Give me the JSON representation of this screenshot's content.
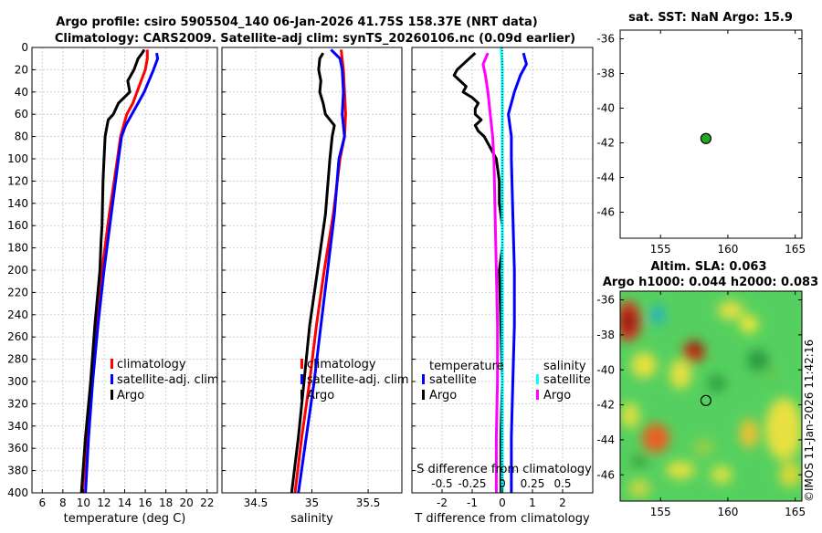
{
  "header": {
    "title_line1": "Argo profile: csiro 5905504_140 06-Jan-2026 41.75S 158.37E (NRT data)",
    "title_line2": "Climatology: CARS2009. Satellite-adj clim: synTS_20260106.nc (0.09d earlier)"
  },
  "colors": {
    "argo": "#000000",
    "climatology": "#ff0000",
    "satellite": "#0000ff",
    "t_satellite": "#0000ff",
    "s_satellite": "#00ffff",
    "s_argo": "#ff00ff"
  },
  "chart_data": [
    {
      "id": "temperature",
      "type": "line",
      "xlabel": "temperature (deg C)",
      "ylabel": "",
      "xlim": [
        5,
        23
      ],
      "ylim": [
        400,
        0
      ],
      "xticks": [
        6,
        8,
        10,
        12,
        14,
        16,
        18,
        20,
        22
      ],
      "yticks": [
        0,
        20,
        40,
        60,
        80,
        100,
        120,
        140,
        160,
        180,
        200,
        220,
        240,
        260,
        280,
        300,
        320,
        340,
        360,
        380,
        400
      ],
      "legend": [
        "climatology",
        "satellite-adj. clim",
        "Argo"
      ],
      "series": [
        {
          "name": "climatology",
          "color": "#ff0000",
          "depth": [
            2,
            10,
            20,
            40,
            50,
            60,
            70,
            80,
            100,
            150,
            200,
            250,
            300,
            350,
            400
          ],
          "values": [
            16.2,
            16.2,
            16.0,
            15.2,
            14.8,
            14.2,
            13.9,
            13.6,
            13.3,
            12.5,
            11.8,
            11.2,
            10.7,
            10.3,
            9.9
          ]
        },
        {
          "name": "satellite-adj. clim",
          "color": "#0000ff",
          "depth": [
            5,
            10,
            20,
            40,
            50,
            60,
            70,
            80,
            100,
            150,
            200,
            250,
            300,
            350,
            400
          ],
          "values": [
            17.1,
            17.2,
            16.8,
            15.9,
            15.3,
            14.7,
            14.1,
            13.7,
            13.4,
            12.7,
            12.0,
            11.4,
            10.9,
            10.5,
            10.2
          ]
        },
        {
          "name": "Argo",
          "color": "#000000",
          "depth": [
            2,
            5,
            10,
            20,
            30,
            40,
            50,
            60,
            65,
            70,
            80,
            100,
            120,
            160,
            175,
            200,
            250,
            300,
            350,
            400
          ],
          "values": [
            15.9,
            15.7,
            15.3,
            14.9,
            14.3,
            14.5,
            13.4,
            12.9,
            12.4,
            12.3,
            12.1,
            12.0,
            11.9,
            11.8,
            11.7,
            11.6,
            11.1,
            10.7,
            10.2,
            9.8
          ]
        }
      ]
    },
    {
      "id": "salinity",
      "type": "line",
      "xlabel": "salinity",
      "ylabel": "",
      "xlim": [
        34.2,
        35.8
      ],
      "ylim": [
        400,
        0
      ],
      "xticks": [
        34.5,
        35,
        35.5
      ],
      "xtick_labels": [
        "34.5",
        "35",
        "35.5"
      ],
      "legend": [
        "climatology",
        "satellite-adj. clim",
        "Argo"
      ],
      "series": [
        {
          "name": "climatology",
          "color": "#ff0000",
          "depth": [
            2,
            20,
            40,
            60,
            80,
            100,
            150,
            200,
            250,
            300,
            350,
            400
          ],
          "values": [
            35.26,
            35.28,
            35.29,
            35.3,
            35.29,
            35.25,
            35.19,
            35.11,
            35.04,
            34.98,
            34.91,
            34.85
          ]
        },
        {
          "name": "satellite-adj. clim",
          "color": "#0000ff",
          "depth": [
            2,
            10,
            20,
            40,
            60,
            80,
            100,
            150,
            200,
            250,
            300,
            350,
            400
          ],
          "values": [
            35.17,
            35.25,
            35.27,
            35.28,
            35.27,
            35.29,
            35.24,
            35.2,
            35.14,
            35.08,
            35.02,
            34.95,
            34.88
          ]
        },
        {
          "name": "Argo",
          "color": "#000000",
          "depth": [
            5,
            10,
            20,
            30,
            40,
            50,
            60,
            70,
            80,
            100,
            150,
            200,
            250,
            300,
            350,
            400
          ],
          "values": [
            35.1,
            35.07,
            35.06,
            35.08,
            35.07,
            35.1,
            35.12,
            35.2,
            35.18,
            35.16,
            35.12,
            35.05,
            34.98,
            34.93,
            34.88,
            34.82
          ]
        }
      ]
    },
    {
      "id": "difference",
      "type": "line",
      "xlabel": "T difference from climatology",
      "ylabel": "",
      "xlim": [
        -3,
        3
      ],
      "ylim": [
        400,
        0
      ],
      "xticks": [
        -2,
        -1,
        0,
        1,
        2
      ],
      "top_label": "S difference from climatology",
      "top_ticks": [
        -0.5,
        -0.25,
        0,
        0.25,
        0.5
      ],
      "top_tick_labels": [
        "-0.5",
        "-0.25",
        "0",
        "0.25",
        "0.5"
      ],
      "legend_left": {
        "header": "temperature",
        "items": [
          "satellite",
          "Argo"
        ]
      },
      "legend_right": {
        "header": "salinity",
        "items": [
          "satellite",
          "Argo"
        ]
      },
      "series": [
        {
          "name": "T satellite",
          "color": "#0000ff",
          "depth": [
            5,
            15,
            25,
            40,
            60,
            80,
            100,
            150,
            200,
            250,
            300,
            350,
            400
          ],
          "values": [
            0.7,
            0.8,
            0.6,
            0.4,
            0.2,
            0.3,
            0.3,
            0.35,
            0.4,
            0.4,
            0.35,
            0.3,
            0.3
          ]
        },
        {
          "name": "T Argo",
          "color": "#000000",
          "depth": [
            5,
            10,
            15,
            20,
            25,
            30,
            35,
            40,
            45,
            50,
            55,
            60,
            65,
            70,
            75,
            80,
            90,
            100,
            120,
            140,
            160,
            180,
            200,
            250,
            300,
            350,
            400
          ],
          "values": [
            -0.9,
            -1.1,
            -1.3,
            -1.5,
            -1.6,
            -1.4,
            -1.2,
            -1.3,
            -1.0,
            -0.8,
            -0.9,
            -0.9,
            -0.7,
            -0.9,
            -0.8,
            -0.6,
            -0.4,
            -0.2,
            -0.1,
            -0.1,
            0.0,
            0.0,
            -0.1,
            -0.05,
            0.0,
            -0.05,
            -0.05
          ]
        },
        {
          "name": "S satellite",
          "color": "#00ffff",
          "depth": [
            0,
            20,
            40,
            60,
            80,
            100,
            150,
            200,
            250,
            300,
            350,
            400
          ],
          "values": [
            -0.01,
            0.0,
            0.0,
            0.0,
            0.0,
            0.0,
            0.0,
            0.0,
            0.0,
            0.0,
            0.0,
            0.0
          ]
        },
        {
          "name": "S Argo",
          "color": "#ff00ff",
          "depth": [
            5,
            15,
            25,
            40,
            60,
            80,
            100,
            150,
            200,
            250,
            300,
            350,
            400
          ],
          "values": [
            -0.12,
            -0.16,
            -0.14,
            -0.12,
            -0.1,
            -0.08,
            -0.07,
            -0.06,
            -0.05,
            -0.04,
            -0.04,
            -0.05,
            -0.05
          ]
        }
      ]
    },
    {
      "id": "sst_map",
      "type": "scatter",
      "title": "sat. SST: NaN Argo: 15.9",
      "xlim": [
        152,
        165.5
      ],
      "ylim": [
        -47.5,
        -35.5
      ],
      "xticks": [
        155,
        160,
        165
      ],
      "yticks": [
        -36,
        -38,
        -40,
        -42,
        -44,
        -46
      ],
      "points": [
        {
          "x": 158.37,
          "y": -41.75,
          "color": "#22aa22"
        }
      ]
    },
    {
      "id": "sla_map",
      "type": "heatmap",
      "title_line1": "Altim. SLA: 0.063",
      "title_line2": "Argo h1000: 0.044 h2000: 0.083",
      "xlim": [
        152,
        165.5
      ],
      "ylim": [
        -47.5,
        -35.5
      ],
      "xticks": [
        155,
        160,
        165
      ],
      "yticks": [
        -36,
        -38,
        -40,
        -42,
        -44,
        -46
      ],
      "points": [
        {
          "x": 158.37,
          "y": -41.75
        }
      ]
    }
  ],
  "watermark": "©IMOS 11-Jan-2026 11:42:16"
}
